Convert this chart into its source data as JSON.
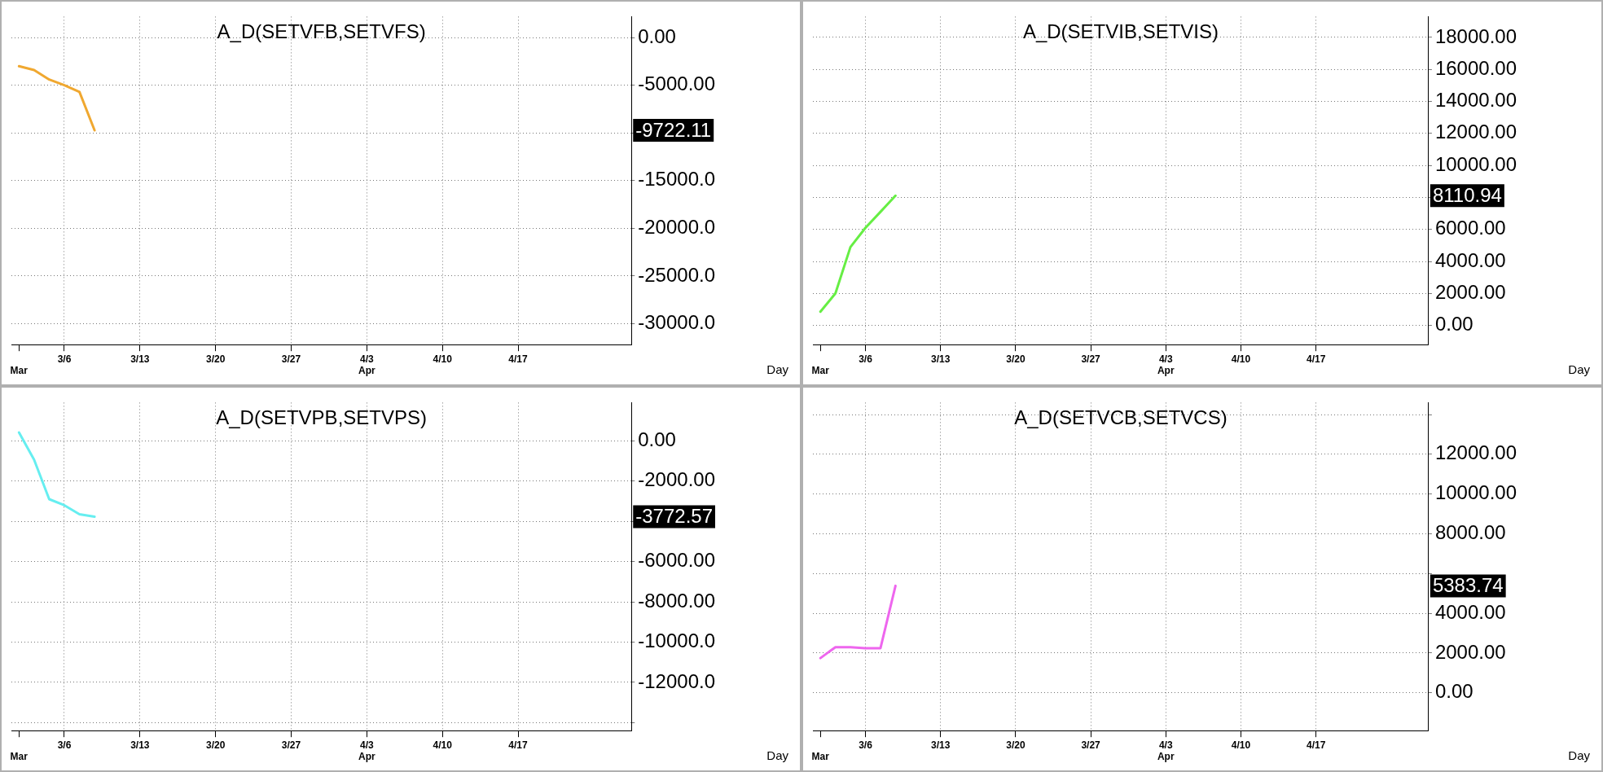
{
  "chart_data": [
    {
      "type": "line",
      "title": "A_D(SETVFB,SETVFS)",
      "xlabel": "Day",
      "legend": false,
      "grid": true,
      "marker": "none",
      "line_style": "solid",
      "categories": [
        "\nMar",
        null,
        null,
        "3/6",
        null,
        null,
        null,
        null,
        "3/13",
        null,
        null,
        null,
        null,
        "3/20",
        null,
        null,
        null,
        null,
        "3/27",
        null,
        null,
        null,
        null,
        "4/3\nApr",
        null,
        null,
        null,
        null,
        "4/10",
        null,
        null,
        null,
        null,
        "4/17",
        null,
        null,
        null,
        null,
        null,
        null,
        null
      ],
      "series": [
        {
          "color": "#f0a830",
          "values": [
            -3000,
            -3400,
            -4400,
            -5000,
            -5700,
            -9722.11,
            null,
            null,
            null,
            null,
            null,
            null,
            null,
            null,
            null,
            null,
            null,
            null,
            null,
            null,
            null,
            null,
            null,
            null,
            null,
            null,
            null,
            null,
            null,
            null,
            null,
            null,
            null,
            null,
            null,
            null,
            null,
            null,
            null,
            null,
            null
          ]
        }
      ],
      "ylim": [
        -32200,
        2200
      ],
      "yticks": [
        {
          "value": 0,
          "label": "0.00"
        },
        {
          "value": -5000,
          "label": "-5000.00"
        },
        {
          "value": -10000,
          "label": null
        },
        {
          "value": -15000,
          "label": "-15000.0"
        },
        {
          "value": -20000,
          "label": "-20000.0"
        },
        {
          "value": -25000,
          "label": "-25000.0"
        },
        {
          "value": -30000,
          "label": "-30000.0"
        }
      ],
      "annotations": [
        "-9722.11"
      ]
    },
    {
      "type": "line",
      "title": "A_D(SETVIB,SETVIS)",
      "xlabel": "Day",
      "legend": false,
      "grid": true,
      "marker": "none",
      "line_style": "solid",
      "categories": [
        "\nMar",
        null,
        null,
        "3/6",
        null,
        null,
        null,
        null,
        "3/13",
        null,
        null,
        null,
        null,
        "3/20",
        null,
        null,
        null,
        null,
        "3/27",
        null,
        null,
        null,
        null,
        "4/3\nApr",
        null,
        null,
        null,
        null,
        "4/10",
        null,
        null,
        null,
        null,
        "4/17",
        null,
        null,
        null,
        null,
        null,
        null,
        null
      ],
      "series": [
        {
          "color": "#66ee44",
          "values": [
            860,
            2000,
            4900,
            6100,
            7100,
            8110.94,
            null,
            null,
            null,
            null,
            null,
            null,
            null,
            null,
            null,
            null,
            null,
            null,
            null,
            null,
            null,
            null,
            null,
            null,
            null,
            null,
            null,
            null,
            null,
            null,
            null,
            null,
            null,
            null,
            null,
            null,
            null,
            null,
            null,
            null,
            null
          ]
        }
      ],
      "ylim": [
        -1200,
        19300
      ],
      "yticks": [
        {
          "value": 0,
          "label": "0.00"
        },
        {
          "value": 2000,
          "label": "2000.00"
        },
        {
          "value": 4000,
          "label": "4000.00"
        },
        {
          "value": 6000,
          "label": "6000.00"
        },
        {
          "value": 8000,
          "label": null
        },
        {
          "value": 10000,
          "label": "10000.00"
        },
        {
          "value": 12000,
          "label": "12000.00"
        },
        {
          "value": 14000,
          "label": "14000.00"
        },
        {
          "value": 16000,
          "label": "16000.00"
        },
        {
          "value": 18000,
          "label": "18000.00"
        }
      ],
      "annotations": [
        "8110.94"
      ]
    },
    {
      "type": "line",
      "title": "A_D(SETVPB,SETVPS)",
      "xlabel": "Day",
      "legend": false,
      "grid": true,
      "marker": "none",
      "line_style": "solid",
      "categories": [
        "\nMar",
        null,
        null,
        "3/6",
        null,
        null,
        null,
        null,
        "3/13",
        null,
        null,
        null,
        null,
        "3/20",
        null,
        null,
        null,
        null,
        "3/27",
        null,
        null,
        null,
        null,
        "4/3\nApr",
        null,
        null,
        null,
        null,
        "4/10",
        null,
        null,
        null,
        null,
        "4/17",
        null,
        null,
        null,
        null,
        null,
        null,
        null
      ],
      "series": [
        {
          "color": "#66eef0",
          "values": [
            420,
            -940,
            -2900,
            -3200,
            -3650,
            -3772.57,
            null,
            null,
            null,
            null,
            null,
            null,
            null,
            null,
            null,
            null,
            null,
            null,
            null,
            null,
            null,
            null,
            null,
            null,
            null,
            null,
            null,
            null,
            null,
            null,
            null,
            null,
            null,
            null,
            null,
            null,
            null,
            null,
            null,
            null,
            null
          ]
        }
      ],
      "ylim": [
        -14400,
        1900
      ],
      "yticks": [
        {
          "value": 0,
          "label": "0.00"
        },
        {
          "value": -2000,
          "label": "-2000.00"
        },
        {
          "value": -4000,
          "label": null
        },
        {
          "value": -6000,
          "label": "-6000.00"
        },
        {
          "value": -8000,
          "label": "-8000.00"
        },
        {
          "value": -10000,
          "label": "-10000.0"
        },
        {
          "value": -12000,
          "label": "-12000.0"
        },
        {
          "value": -14000,
          "label": null
        }
      ],
      "annotations": [
        "-3772.57"
      ]
    },
    {
      "type": "line",
      "title": "A_D(SETVCB,SETVCS)",
      "xlabel": "Day",
      "legend": false,
      "grid": true,
      "marker": "none",
      "line_style": "solid",
      "categories": [
        "\nMar",
        null,
        null,
        "3/6",
        null,
        null,
        null,
        null,
        "3/13",
        null,
        null,
        null,
        null,
        "3/20",
        null,
        null,
        null,
        null,
        "3/27",
        null,
        null,
        null,
        null,
        "4/3\nApr",
        null,
        null,
        null,
        null,
        "4/10",
        null,
        null,
        null,
        null,
        "4/17",
        null,
        null,
        null,
        null,
        null,
        null,
        null
      ],
      "series": [
        {
          "color": "#ee66ee",
          "values": [
            1750,
            2300,
            2300,
            2250,
            2250,
            5383.74,
            null,
            null,
            null,
            null,
            null,
            null,
            null,
            null,
            null,
            null,
            null,
            null,
            null,
            null,
            null,
            null,
            null,
            null,
            null,
            null,
            null,
            null,
            null,
            null,
            null,
            null,
            null,
            null,
            null,
            null,
            null,
            null,
            null,
            null,
            null
          ]
        }
      ],
      "ylim": [
        -1900,
        14600
      ],
      "yticks": [
        {
          "value": 0,
          "label": "0.00"
        },
        {
          "value": 2000,
          "label": "2000.00"
        },
        {
          "value": 4000,
          "label": "4000.00"
        },
        {
          "value": 6000,
          "label": null
        },
        {
          "value": 8000,
          "label": "8000.00"
        },
        {
          "value": 10000,
          "label": "10000.00"
        },
        {
          "value": 12000,
          "label": "12000.00"
        },
        {
          "value": 14000,
          "label": null
        }
      ],
      "annotations": [
        "5383.74"
      ]
    }
  ]
}
